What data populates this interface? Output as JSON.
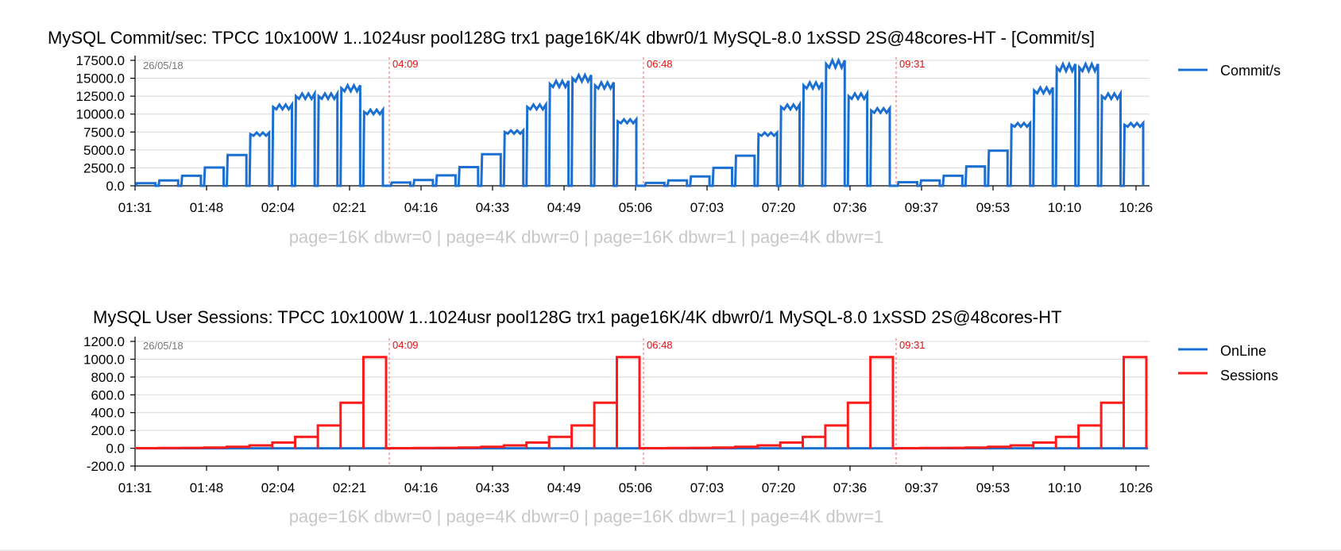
{
  "colors": {
    "commit": "#1a6fd0",
    "online": "#1a6fd0",
    "sessions": "#ff1a1a",
    "marker": "#e01010"
  },
  "chart_data": [
    {
      "type": "line",
      "title": "MySQL Commit/sec: TPCC 10x100W 1..1024usr pool128G trx1 page16K/4K dbwr0/1 MySQL-8.0 1xSSD 2S@48cores-HT - [Commit/s]",
      "date_label": "26/05/18",
      "caption": "page=16K dbwr=0 | page=4K dbwr=0 | page=16K dbwr=1 | page=4K dbwr=1",
      "y_ticks": [
        "17500.0",
        "15000.0",
        "12500.0",
        "10000.0",
        "7500.0",
        "5000.0",
        "2500.0",
        "0.0"
      ],
      "ylim": [
        0,
        17500
      ],
      "x_ticks": [
        "01:31",
        "01:48",
        "02:04",
        "02:21",
        "04:16",
        "04:33",
        "04:49",
        "05:06",
        "07:03",
        "07:20",
        "07:36",
        "09:37",
        "09:53",
        "10:10",
        "10:26"
      ],
      "markers": [
        "04:09",
        "06:48",
        "09:31"
      ],
      "legend": "top-right",
      "series": [
        {
          "name": "Commit/s",
          "color": "#1a6fd0",
          "step_levels": [
            [
              350,
              750,
              1400,
              2550,
              4300,
              7200,
              11000,
              12500,
              12500,
              13600,
              10300
            ],
            [
              450,
              800,
              1450,
              2600,
              4400,
              7500,
              11000,
              14200,
              15000,
              14000,
              9000
            ],
            [
              400,
              750,
              1300,
              2500,
              4200,
              7200,
              11000,
              14000,
              17000,
              12500,
              10500
            ],
            [
              500,
              750,
              1400,
              2700,
              4900,
              8500,
              13300,
              16500,
              16500,
              12500,
              8500
            ]
          ]
        }
      ]
    },
    {
      "type": "line",
      "title": "MySQL User Sessions: TPCC 10x100W 1..1024usr pool128G trx1 page16K/4K dbwr0/1 MySQL-8.0 1xSSD 2S@48cores-HT",
      "date_label": "26/05/18",
      "caption": "page=16K dbwr=0 | page=4K dbwr=0 | page=16K dbwr=1 | page=4K dbwr=1",
      "y_ticks": [
        "1200.0",
        "1000.0",
        "800.0",
        "600.0",
        "400.0",
        "200.0",
        "0.0",
        "-200.0"
      ],
      "ylim": [
        -200,
        1200
      ],
      "x_ticks": [
        "01:31",
        "01:48",
        "02:04",
        "02:21",
        "04:16",
        "04:33",
        "04:49",
        "05:06",
        "07:03",
        "07:20",
        "07:36",
        "09:37",
        "09:53",
        "10:10",
        "10:26"
      ],
      "markers": [
        "04:09",
        "06:48",
        "09:31"
      ],
      "legend": "top-right",
      "series": [
        {
          "name": "OnLine",
          "color": "#1a6fd0",
          "values": [
            0
          ]
        },
        {
          "name": "Sessions",
          "color": "#ff1a1a",
          "step_levels": [
            1,
            2,
            4,
            8,
            16,
            32,
            64,
            128,
            256,
            512,
            1024
          ]
        }
      ]
    }
  ]
}
